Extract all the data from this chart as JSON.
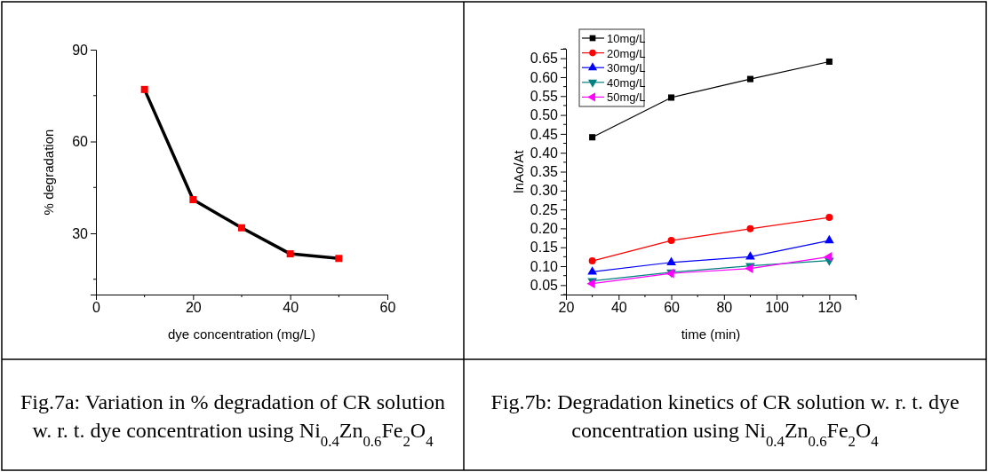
{
  "chart_data": [
    {
      "type": "line",
      "xlabel": "dye concentration (mg/L)",
      "ylabel": "% degradation",
      "x": [
        10,
        20,
        30,
        40,
        50
      ],
      "xlim": [
        0,
        60
      ],
      "xticks": [
        0,
        20,
        40,
        60
      ],
      "ylim": [
        10,
        90
      ],
      "yticks": [
        30,
        60,
        90
      ],
      "marker": "square",
      "line_style": "solid",
      "grid": false,
      "legend": false,
      "series": [
        {
          "color": "#000000",
          "colors": [
            "#ff0000",
            "#ff0000",
            "#ff0000",
            "#ff0000",
            "#ff0000"
          ],
          "values": [
            77,
            41,
            31.8,
            23.3,
            21.8
          ]
        }
      ],
      "annotations": [
        "Fig.7a: Variation in % degradation of CR solution w. r. t. dye concentration using Ni$_{0.4}$Zn$_{0.6}$Fe$_{2}$O$_{4}$"
      ]
    },
    {
      "type": "line",
      "xlabel": "time (min)",
      "ylabel": "lnAo/At",
      "x": [
        30,
        60,
        90,
        120
      ],
      "xlim": [
        20,
        130
      ],
      "xticks": [
        20,
        40,
        60,
        80,
        100,
        120
      ],
      "ylim": [
        0.025,
        0.675
      ],
      "yticks": [
        {
          "value": 0.05,
          "label": "0.05"
        },
        {
          "value": 0.1,
          "label": "0.10"
        },
        {
          "value": 0.15,
          "label": "0.15"
        },
        {
          "value": 0.2,
          "label": "0.20"
        },
        {
          "value": 0.25,
          "label": "0.25"
        },
        {
          "value": 0.3,
          "label": "0.30"
        },
        {
          "value": 0.35,
          "label": "0.35"
        },
        {
          "value": 0.4,
          "label": "0.40"
        },
        {
          "value": 0.45,
          "label": "0.45"
        },
        {
          "value": 0.5,
          "label": "0.50"
        },
        {
          "value": 0.55,
          "label": "0.55"
        },
        {
          "value": 0.6,
          "label": "0.60"
        },
        {
          "value": 0.65,
          "label": "0.65"
        }
      ],
      "line_style": "solid",
      "grid": false,
      "legend": "top left",
      "series": [
        {
          "name": "10mg/L",
          "color": "#000000",
          "marker": "square",
          "values": [
            0.441,
            0.546,
            0.595,
            0.641
          ]
        },
        {
          "name": "20mg/L",
          "color": "#ff0000",
          "marker": "circle",
          "values": [
            0.114,
            0.168,
            0.199,
            0.229
          ]
        },
        {
          "name": "30mg/L",
          "color": "#0000ff",
          "marker": "triangle",
          "values": [
            0.085,
            0.11,
            0.125,
            0.168
          ]
        },
        {
          "name": "40mg/L",
          "color": "#008080",
          "marker": "triangle-down",
          "values": [
            0.061,
            0.084,
            0.101,
            0.115
          ]
        },
        {
          "name": "50mg/L",
          "color": "#ff00ff",
          "marker": "triangle-left",
          "values": [
            0.054,
            0.081,
            0.094,
            0.125
          ]
        }
      ],
      "annotations": [
        "Fig.7b: Degradation kinetics of CR solution w. r. t. dye concentration using Ni$_{0.4}$Zn$_{0.6}$Fe$_{2}$O$_{4}$"
      ]
    }
  ]
}
